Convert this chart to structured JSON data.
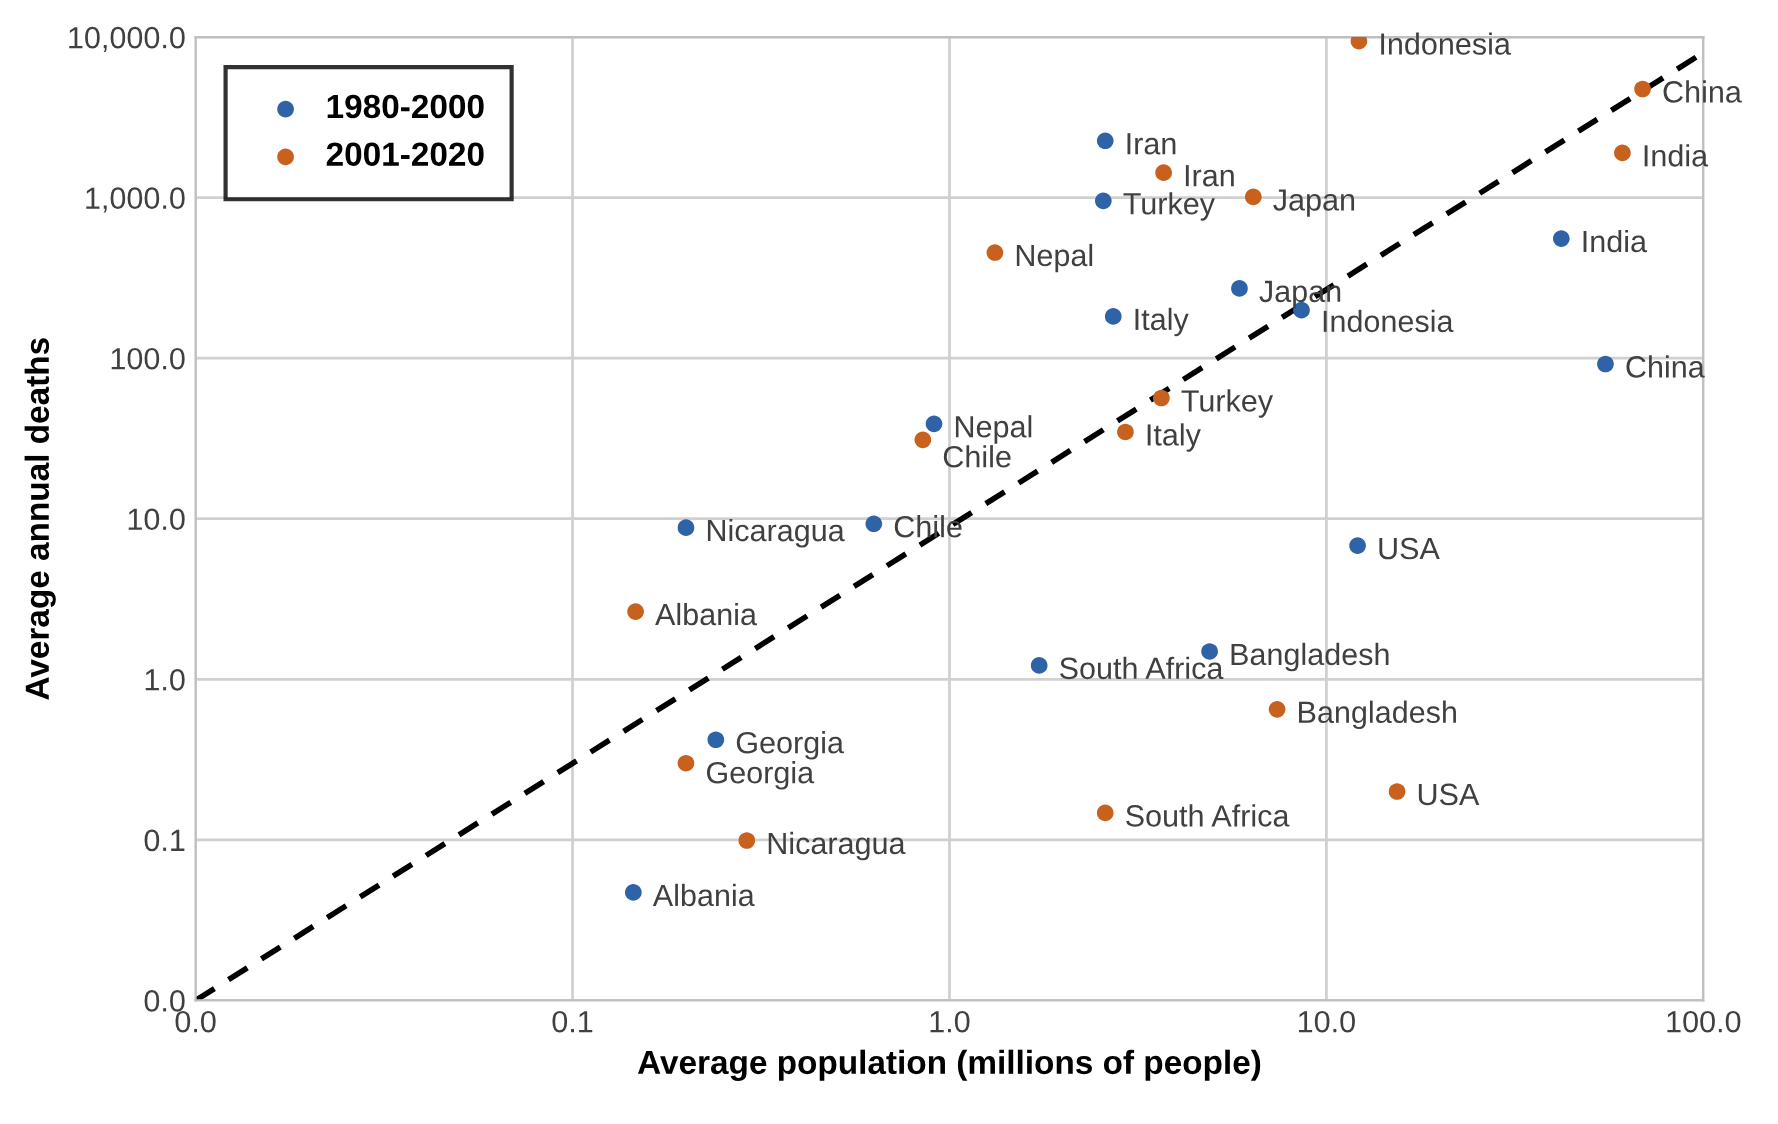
{
  "chart_data": {
    "type": "scatter",
    "xlabel": "Average population (millions of people)",
    "ylabel": "Average annual deaths",
    "log": "xy",
    "grid": true,
    "legend": "top left",
    "marker": "circle",
    "xlim": [
      0.01,
      100
    ],
    "ylim": [
      0.01,
      10000
    ],
    "xticks": [
      {
        "value": 0.01,
        "label": "0.0"
      },
      {
        "value": 0.1,
        "label": "0.1"
      },
      {
        "value": 1,
        "label": "1.0"
      },
      {
        "value": 10,
        "label": "10.0"
      },
      {
        "value": 100,
        "label": "100.0"
      }
    ],
    "yticks": [
      {
        "value": 0.01,
        "label": "0.0"
      },
      {
        "value": 0.1,
        "label": "0.1"
      },
      {
        "value": 1,
        "label": "1.0"
      },
      {
        "value": 10,
        "label": "10.0"
      },
      {
        "value": 100,
        "label": "100.0"
      },
      {
        "value": 1000,
        "label": "1,000.0"
      },
      {
        "value": 10000,
        "label": "10,000.0"
      }
    ],
    "series": [
      {
        "name": "1980-2000",
        "color": "#2e63a8",
        "x": [
          2.59,
          2.56,
          5.88,
          8.59,
          2.72,
          42,
          55,
          0.91,
          0.63,
          0.2,
          12.1,
          4.9,
          1.73,
          0.24,
          0.145
        ],
        "values": [
          2260,
          955,
          272,
          199,
          182,
          556,
          92,
          39,
          9.3,
          8.8,
          6.8,
          1.49,
          1.22,
          0.42,
          0.047
        ]
      },
      {
        "name": "2001-2020",
        "color": "#c8601e",
        "x": [
          12.2,
          69,
          61,
          3.7,
          6.4,
          1.32,
          3.65,
          2.93,
          0.85,
          0.147,
          7.4,
          15.4,
          2.59,
          0.2,
          0.29
        ],
        "values": [
          9440,
          4750,
          1900,
          1430,
          1010,
          455,
          56.5,
          34.7,
          31,
          2.64,
          0.65,
          0.2,
          0.147,
          0.3,
          0.099
        ]
      },
      {
        "type": "line",
        "color": "#000000",
        "line_style": "dashed",
        "marker": "none",
        "x": [
          0.01,
          100
        ],
        "values": [
          0.01,
          8000
        ]
      }
    ],
    "annotations": [
      {
        "text": "Iran",
        "x": 2.59,
        "y": 2260
      },
      {
        "text": "Turkey",
        "x": 2.56,
        "y": 955
      },
      {
        "text": "Japan",
        "x": 5.88,
        "y": 272
      },
      {
        "text": "Indonesia",
        "x": 8.59,
        "y": 199
      },
      {
        "text": "Italy",
        "x": 2.72,
        "y": 182
      },
      {
        "text": "India",
        "x": 42,
        "y": 556
      },
      {
        "text": "China",
        "x": 55,
        "y": 92
      },
      {
        "text": "Nepal",
        "x": 0.91,
        "y": 39
      },
      {
        "text": "Chile",
        "x": 0.63,
        "y": 9.3
      },
      {
        "text": "Nicaragua",
        "x": 0.2,
        "y": 8.8
      },
      {
        "text": "USA",
        "x": 12.1,
        "y": 6.8
      },
      {
        "text": "Bangladesh",
        "x": 4.9,
        "y": 1.49
      },
      {
        "text": "South Africa",
        "x": 1.73,
        "y": 1.22
      },
      {
        "text": "Georgia",
        "x": 0.24,
        "y": 0.42
      },
      {
        "text": "Albania",
        "x": 0.145,
        "y": 0.047
      },
      {
        "text": "Indonesia",
        "x": 12.2,
        "y": 9440
      },
      {
        "text": "China",
        "x": 69,
        "y": 4750
      },
      {
        "text": "India",
        "x": 61,
        "y": 1900
      },
      {
        "text": "Iran",
        "x": 3.7,
        "y": 1430
      },
      {
        "text": "Japan",
        "x": 6.4,
        "y": 1010
      },
      {
        "text": "Nepal",
        "x": 1.32,
        "y": 455
      },
      {
        "text": "Turkey",
        "x": 3.65,
        "y": 56.5
      },
      {
        "text": "Italy",
        "x": 2.93,
        "y": 34.7
      },
      {
        "text": "Chile",
        "x": 0.85,
        "y": 31
      },
      {
        "text": "Albania",
        "x": 0.147,
        "y": 2.64
      },
      {
        "text": "Bangladesh",
        "x": 7.4,
        "y": 0.65
      },
      {
        "text": "USA",
        "x": 15.4,
        "y": 0.2
      },
      {
        "text": "South Africa",
        "x": 2.59,
        "y": 0.147
      },
      {
        "text": "Georgia",
        "x": 0.2,
        "y": 0.3
      },
      {
        "text": "Nicaragua",
        "x": 0.29,
        "y": 0.099
      }
    ]
  }
}
